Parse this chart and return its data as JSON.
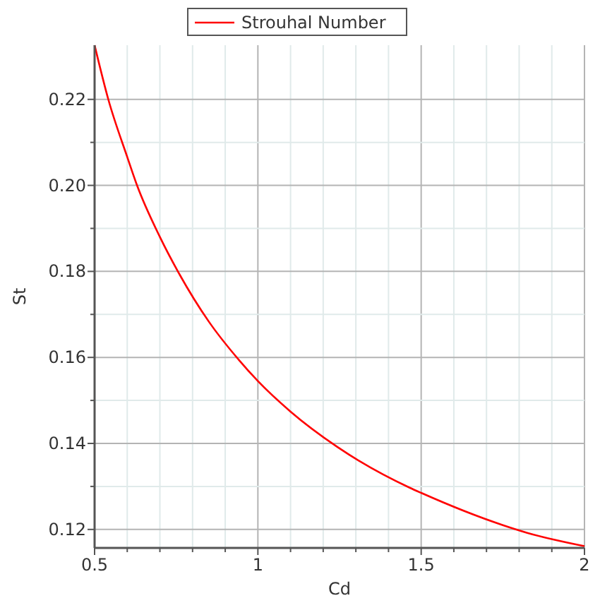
{
  "chart_data": {
    "type": "line",
    "xlabel": "Cd",
    "ylabel": "St",
    "legend": "top",
    "grid": true,
    "xlim": [
      0.5,
      2
    ],
    "ylim": [
      0.1157,
      0.2326
    ],
    "xticks": [
      0.5,
      {
        "value": 0.6,
        "label": null
      },
      {
        "value": 0.7,
        "label": null
      },
      {
        "value": 0.8,
        "label": null
      },
      {
        "value": 0.9,
        "label": null
      },
      1,
      {
        "value": 1.1,
        "label": null
      },
      {
        "value": 1.2,
        "label": null
      },
      {
        "value": 1.3,
        "label": null
      },
      {
        "value": 1.4,
        "label": null
      },
      1.5,
      {
        "value": 1.6,
        "label": null
      },
      {
        "value": 1.7,
        "label": null
      },
      {
        "value": 1.8,
        "label": null
      },
      {
        "value": 1.9,
        "label": null
      },
      2
    ],
    "yticks": [
      0.12,
      {
        "value": 0.13,
        "label": null
      },
      0.14,
      {
        "value": 0.15,
        "label": null
      },
      0.16,
      {
        "value": 0.17,
        "label": null
      },
      0.18,
      {
        "value": 0.19,
        "label": null
      },
      {
        "value": 0.2,
        "label": "0.20"
      },
      {
        "value": 0.21,
        "label": null
      },
      0.22
    ],
    "x": [
      0.5,
      0.542,
      0.6,
      0.63,
      0.7,
      0.755,
      0.85,
      0.942,
      1.0,
      1.1,
      1.243,
      1.465,
      1.5,
      1.75,
      1.825,
      2.0
    ],
    "series": [
      {
        "name": "Strouhal Number",
        "color": "#ff0000",
        "values": [
          0.2326,
          0.22,
          0.2066,
          0.2,
          0.188,
          0.18,
          0.1683,
          0.1594,
          0.1545,
          0.1474,
          0.1392,
          0.1297,
          0.1285,
          0.121,
          0.1192,
          0.1161
        ]
      }
    ]
  }
}
